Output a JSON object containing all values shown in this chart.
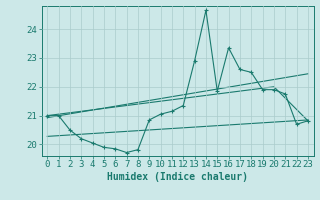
{
  "xlabel": "Humidex (Indice chaleur)",
  "bg_color": "#cce8e8",
  "line_color": "#1a7a6e",
  "grid_color": "#aacccc",
  "xlim": [
    -0.5,
    23.5
  ],
  "ylim": [
    19.6,
    24.8
  ],
  "yticks": [
    20,
    21,
    22,
    23,
    24
  ],
  "xticks": [
    0,
    1,
    2,
    3,
    4,
    5,
    6,
    7,
    8,
    9,
    10,
    11,
    12,
    13,
    14,
    15,
    16,
    17,
    18,
    19,
    20,
    21,
    22,
    23
  ],
  "main_x": [
    0,
    1,
    2,
    3,
    4,
    5,
    6,
    7,
    8,
    9,
    10,
    11,
    12,
    13,
    14,
    15,
    16,
    17,
    18,
    19,
    20,
    21,
    22,
    23
  ],
  "main_y": [
    21.0,
    21.0,
    20.5,
    20.2,
    20.05,
    19.9,
    19.85,
    19.72,
    19.82,
    20.85,
    21.05,
    21.15,
    21.35,
    22.9,
    24.65,
    21.85,
    23.35,
    22.6,
    22.5,
    21.9,
    21.9,
    21.75,
    20.7,
    20.82
  ],
  "trend1_x": [
    0,
    23
  ],
  "trend1_y": [
    20.93,
    22.45
  ],
  "trend2_x": [
    0,
    23
  ],
  "trend2_y": [
    20.28,
    20.85
  ],
  "trend3_x": [
    0,
    20,
    23
  ],
  "trend3_y": [
    21.0,
    22.0,
    20.82
  ],
  "markersize": 2.5,
  "linewidth": 0.8,
  "tick_fontsize": 6.5,
  "xlabel_fontsize": 7.0
}
